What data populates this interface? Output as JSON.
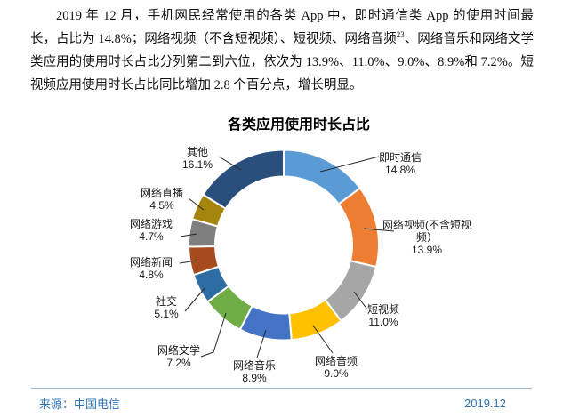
{
  "paragraph": {
    "pre_sup": "2019 年 12 月，手机网民经常使用的各类 App 中，即时通信类 App 的使用时间最长，占比为 14.8%；网络视频（不含短视频）、短视频、网络音频",
    "sup": "23",
    "post_sup": "、网络音乐和网络文学类应用的使用时长占比分列第二到六位，依次为 13.9%、11.0%、9.0%、8.9%和 7.2%。短视频应用使用时长占比同比增加 2.8 个百分点，增长明显。"
  },
  "chart_data": {
    "type": "pie",
    "subtype": "donut",
    "title": "各类应用使用时长占比",
    "unit": "%",
    "start_angle_deg": 0,
    "direction": "clockwise",
    "segments": [
      {
        "label": "即时通信",
        "value": 14.8,
        "color": "#5B9BD5"
      },
      {
        "label": "网络视频(不含短视频）",
        "value": 13.9,
        "color": "#ED7D31"
      },
      {
        "label": "短视频",
        "value": 11.0,
        "color": "#A6A6A6"
      },
      {
        "label": "网络音频",
        "value": 9.0,
        "color": "#FFC000"
      },
      {
        "label": "网络音乐",
        "value": 8.9,
        "color": "#4472C4"
      },
      {
        "label": "网络文学",
        "value": 7.2,
        "color": "#70AD47"
      },
      {
        "label": "社交",
        "value": 5.1,
        "color": "#2E6DA4"
      },
      {
        "label": "网络新闻",
        "value": 4.8,
        "color": "#A64B1B"
      },
      {
        "label": "网络游戏",
        "value": 4.7,
        "color": "#7F7F7F"
      },
      {
        "label": "网络直播",
        "value": 4.5,
        "color": "#A6850F"
      },
      {
        "label": "其他",
        "value": 16.1,
        "color": "#2A4F7D"
      }
    ]
  },
  "footer": {
    "source": "来源：中国电信",
    "date": "2019.12"
  }
}
